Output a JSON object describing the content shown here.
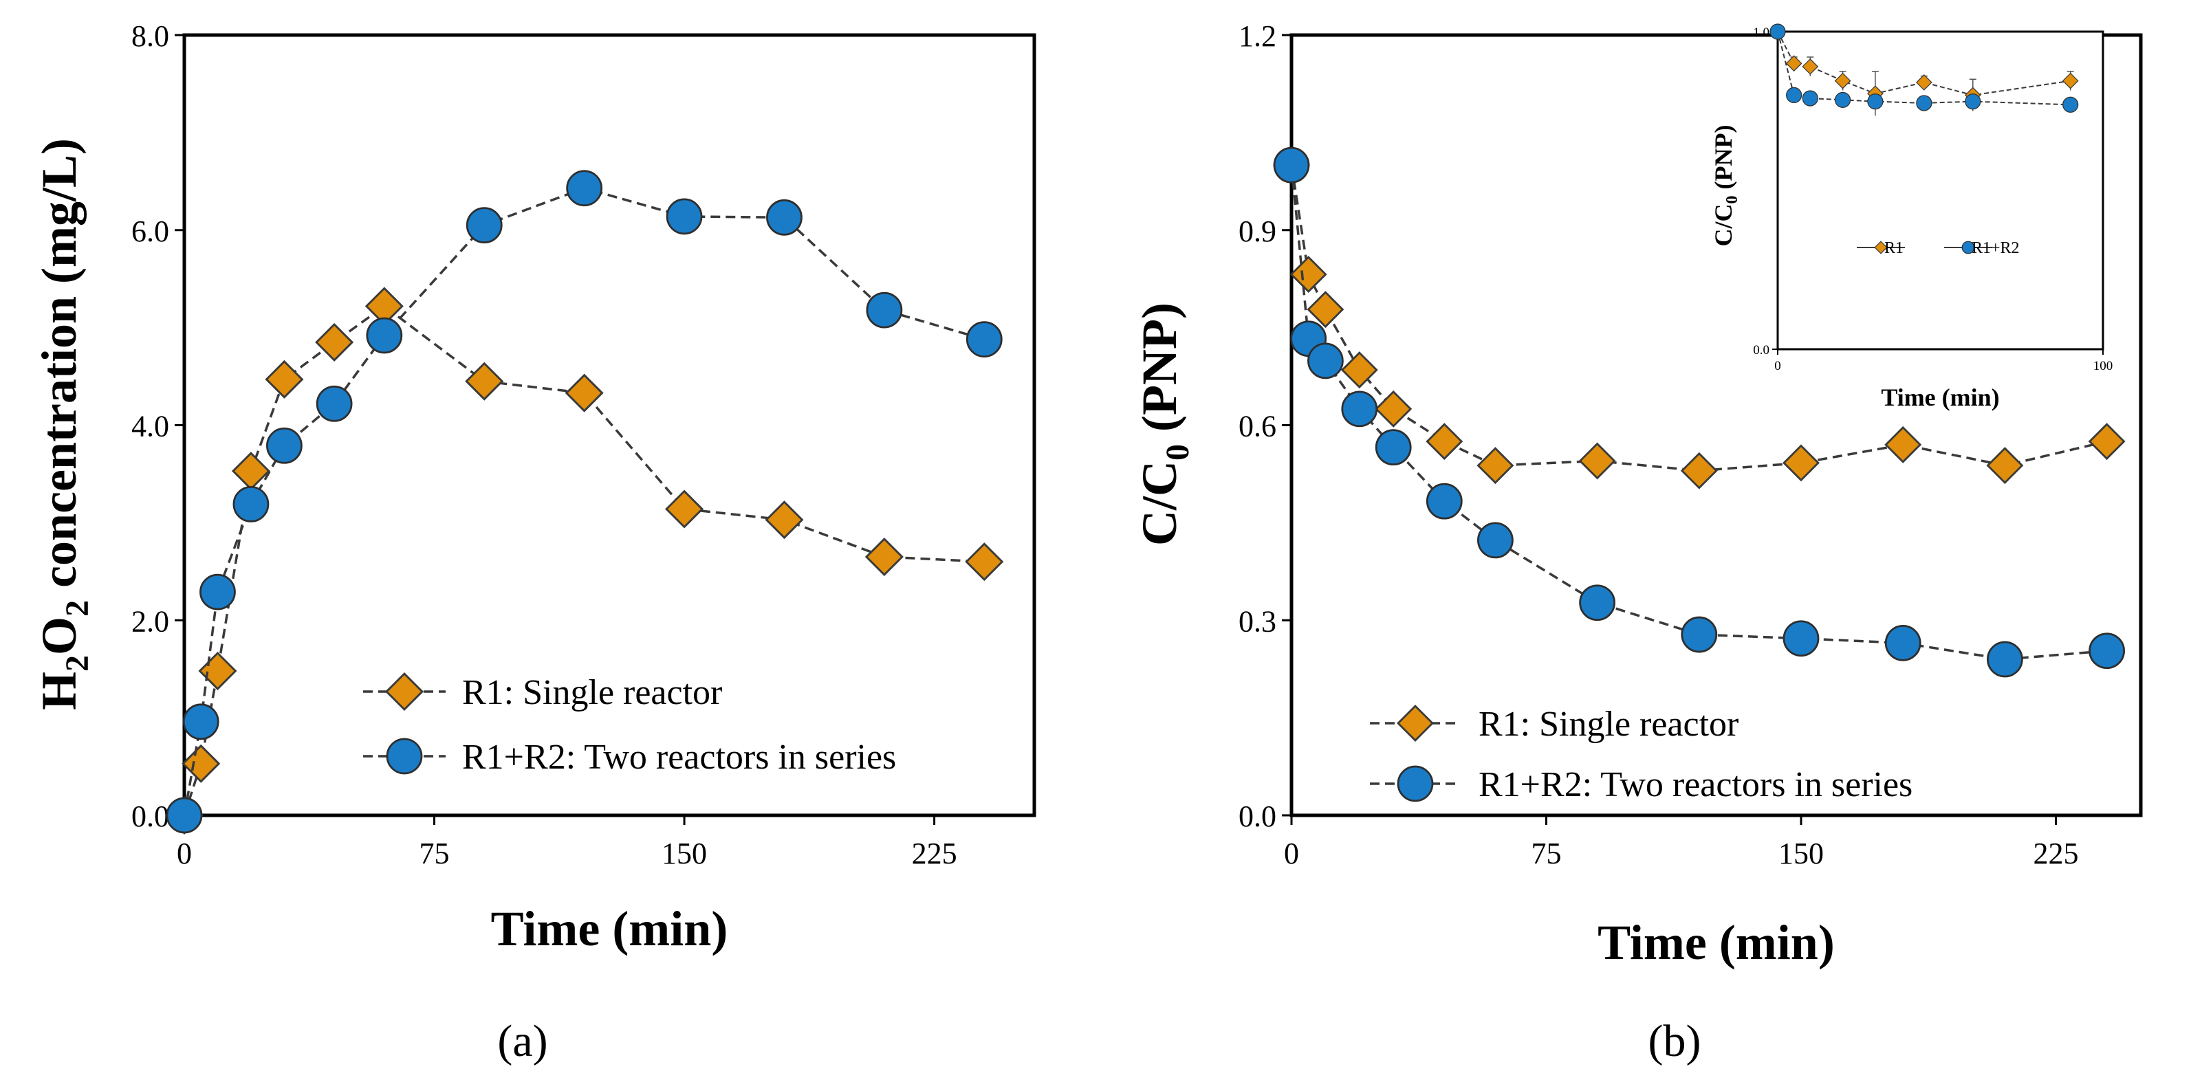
{
  "chart_data": [
    {
      "id": "a",
      "type": "line",
      "caption": "(a)",
      "xlabel": "Time (min)",
      "ylabel": {
        "main": "H",
        "sub1": "2",
        "mid": "O",
        "sub2": "2",
        "tail": "  concentration (mg/L)"
      },
      "xlim": [
        0,
        255
      ],
      "ylim": [
        0,
        8
      ],
      "xticks": [
        0,
        75,
        150,
        225
      ],
      "xtick_labels": [
        "0",
        "75",
        "150",
        "225"
      ],
      "yticks": [
        0,
        2,
        4,
        6,
        8
      ],
      "ytick_labels": [
        "0.0",
        "2.0",
        "4.0",
        "6.0",
        "8.0"
      ],
      "series": [
        {
          "name": "R1: Single reactor",
          "marker": "diamond",
          "color": "#E08E0B",
          "x": [
            0,
            5,
            10,
            20,
            30,
            45,
            60,
            90,
            120,
            150,
            180,
            210,
            240
          ],
          "y": [
            0.0,
            0.53,
            1.48,
            3.53,
            4.47,
            4.85,
            5.22,
            4.45,
            4.33,
            3.14,
            3.03,
            2.65,
            2.6
          ]
        },
        {
          "name": "R1+R2: Two reactors in series",
          "marker": "circle",
          "color": "#1A7CC6",
          "x": [
            0,
            5,
            10,
            20,
            30,
            45,
            60,
            90,
            120,
            150,
            180,
            210,
            240
          ],
          "y": [
            0.0,
            0.96,
            2.29,
            3.19,
            3.79,
            4.22,
            4.92,
            6.05,
            6.43,
            6.14,
            6.13,
            5.18,
            4.88
          ]
        }
      ]
    },
    {
      "id": "b",
      "type": "line",
      "caption": "(b)",
      "xlabel": "Time (min)",
      "ylabel": {
        "main": "C/C",
        "sub": "0",
        "tail": " (PNP)"
      },
      "xlim": [
        0,
        250
      ],
      "ylim": [
        0,
        1.2
      ],
      "xticks": [
        0,
        75,
        150,
        225
      ],
      "xtick_labels": [
        "0",
        "75",
        "150",
        "225"
      ],
      "yticks": [
        0,
        0.3,
        0.6,
        0.9,
        1.2
      ],
      "ytick_labels": [
        "0.0",
        "0.3",
        "0.6",
        "0.9",
        "1.2"
      ],
      "series": [
        {
          "name": "R1: Single reactor",
          "marker": "diamond",
          "color": "#E08E0B",
          "x": [
            0,
            5,
            10,
            20,
            30,
            45,
            60,
            90,
            120,
            150,
            180,
            210,
            240
          ],
          "y": [
            1.0,
            0.832,
            0.778,
            0.685,
            0.625,
            0.575,
            0.538,
            0.545,
            0.53,
            0.542,
            0.57,
            0.538,
            0.575
          ]
        },
        {
          "name": "R1+R2: Two reactors in series",
          "marker": "circle",
          "color": "#1A7CC6",
          "x": [
            0,
            5,
            10,
            20,
            30,
            45,
            60,
            90,
            120,
            150,
            180,
            210,
            240
          ],
          "y": [
            1.0,
            0.733,
            0.699,
            0.625,
            0.566,
            0.483,
            0.423,
            0.327,
            0.278,
            0.272,
            0.265,
            0.24,
            0.253
          ]
        }
      ],
      "inset": {
        "type": "line",
        "xlabel": "Time (min)",
        "ylabel": {
          "main": "C/C",
          "sub": "0",
          "tail": " (PNP)"
        },
        "xlim": [
          0,
          100
        ],
        "ylim": [
          0,
          1
        ],
        "xticks": [
          0,
          100
        ],
        "xtick_labels": [
          "0",
          "100"
        ],
        "yticks": [
          0,
          1
        ],
        "ytick_labels": [
          "0.0",
          "1.0"
        ],
        "series": [
          {
            "name": "R1",
            "marker": "diamond",
            "color": "#E08E0B",
            "x": [
              0,
              5,
              10,
              20,
              30,
              45,
              60,
              90
            ],
            "y": [
              1.0,
              0.9,
              0.89,
              0.845,
              0.805,
              0.84,
              0.8,
              0.845
            ],
            "err": [
              0,
              0.02,
              0.03,
              0.03,
              0.07,
              0.02,
              0.05,
              0.03
            ]
          },
          {
            "name": "R1+R2",
            "marker": "circle",
            "color": "#1A7CC6",
            "x": [
              0,
              5,
              10,
              20,
              30,
              45,
              60,
              90
            ],
            "y": [
              1.0,
              0.8,
              0.79,
              0.785,
              0.78,
              0.775,
              0.78,
              0.77
            ],
            "err": [
              0,
              0,
              0,
              0,
              0,
              0,
              0,
              0
            ]
          }
        ]
      }
    }
  ]
}
